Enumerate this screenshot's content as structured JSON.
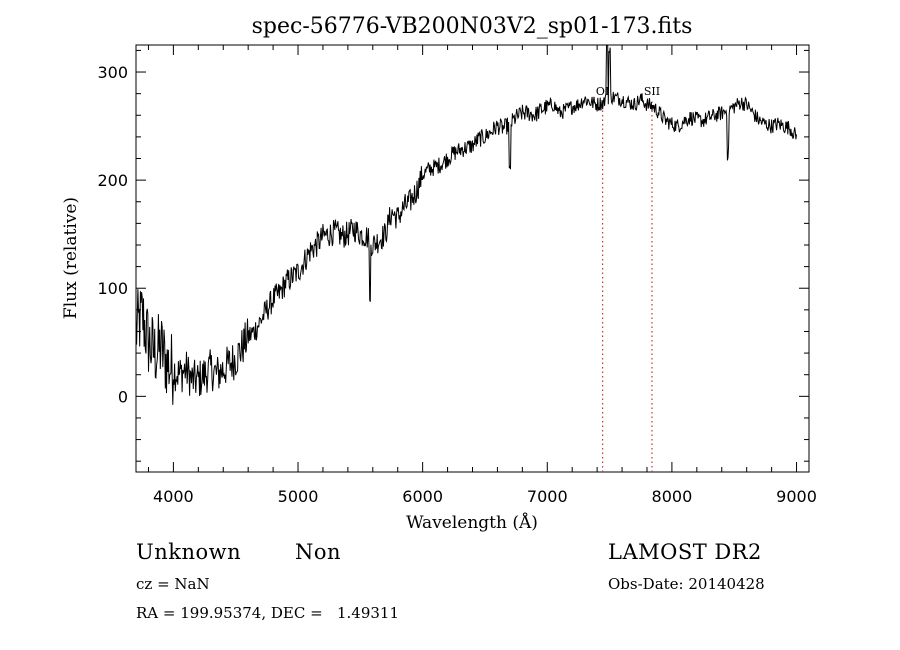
{
  "chart_data": {
    "type": "line",
    "title": "spec-56776-VB200N03V2_sp01-173.fits",
    "xlabel": "Wavelength (Å)",
    "ylabel": "Flux (relative)",
    "xlim": [
      3700,
      9100
    ],
    "ylim": [
      -70,
      325
    ],
    "x_ticks": [
      4000,
      5000,
      6000,
      7000,
      8000,
      9000
    ],
    "x_tick_labels": [
      "4000",
      "5000",
      "6000",
      "7000",
      "8000",
      "9000"
    ],
    "y_ticks": [
      0,
      100,
      200,
      300
    ],
    "y_tick_labels": [
      "0",
      "100",
      "200",
      "300"
    ],
    "grid": false,
    "line_color": "#000000",
    "series": [
      {
        "x": [
          3700,
          3750,
          3800,
          3850,
          3900,
          3950,
          4000,
          4050,
          4100,
          4150,
          4200,
          4250,
          4300,
          4350,
          4400,
          4450,
          4500,
          4550,
          4600,
          4650,
          4700,
          4750,
          4800,
          4850,
          4900,
          4950,
          5000,
          5050,
          5100,
          5150,
          5200,
          5250,
          5300,
          5350,
          5400,
          5450,
          5500,
          5550,
          5600,
          5650,
          5700,
          5750,
          5800,
          5850,
          5900,
          5950,
          6000,
          6050,
          6100,
          6150,
          6200,
          6250,
          6300,
          6350,
          6400,
          6450,
          6500,
          6550,
          6600,
          6650,
          6700,
          6750,
          6800,
          6850,
          6900,
          6950,
          7000,
          7050,
          7100,
          7150,
          7200,
          7250,
          7300,
          7350,
          7400,
          7450,
          7500,
          7550,
          7600,
          7650,
          7700,
          7750,
          7800,
          7850,
          7900,
          7950,
          8000,
          8050,
          8100,
          8150,
          8200,
          8250,
          8300,
          8350,
          8400,
          8450,
          8500,
          8550,
          8600,
          8650,
          8700,
          8750,
          8800,
          8850,
          8900,
          8950,
          9000
        ],
        "y": [
          60,
          75,
          50,
          40,
          45,
          30,
          25,
          20,
          25,
          15,
          15,
          20,
          25,
          20,
          25,
          30,
          35,
          45,
          55,
          60,
          70,
          80,
          90,
          95,
          105,
          110,
          115,
          125,
          135,
          140,
          148,
          150,
          152,
          148,
          150,
          155,
          150,
          148,
          140,
          145,
          150,
          170,
          165,
          175,
          180,
          190,
          205,
          210,
          212,
          215,
          220,
          225,
          228,
          230,
          232,
          238,
          240,
          245,
          250,
          248,
          252,
          258,
          262,
          262,
          260,
          265,
          268,
          270,
          262,
          265,
          268,
          270,
          275,
          272,
          270,
          272,
          278,
          276,
          275,
          272,
          270,
          275,
          270,
          268,
          262,
          255,
          252,
          250,
          255,
          258,
          256,
          255,
          258,
          260,
          262,
          265,
          268,
          272,
          270,
          262,
          255,
          252,
          250,
          252,
          250,
          248,
          240
        ]
      }
    ],
    "lines": [
      {
        "label": "OI",
        "x": 7444,
        "color": "#cc3333"
      },
      {
        "label": "SII",
        "x": 7840,
        "color": "#cc3333"
      }
    ]
  },
  "info": {
    "class": "Unknown",
    "subclass": "Non",
    "survey": "LAMOST DR2",
    "cz": "cz = NaN",
    "obs_date": "Obs-Date: 20140428",
    "coords": "RA = 199.95374, DEC =   1.49311"
  }
}
